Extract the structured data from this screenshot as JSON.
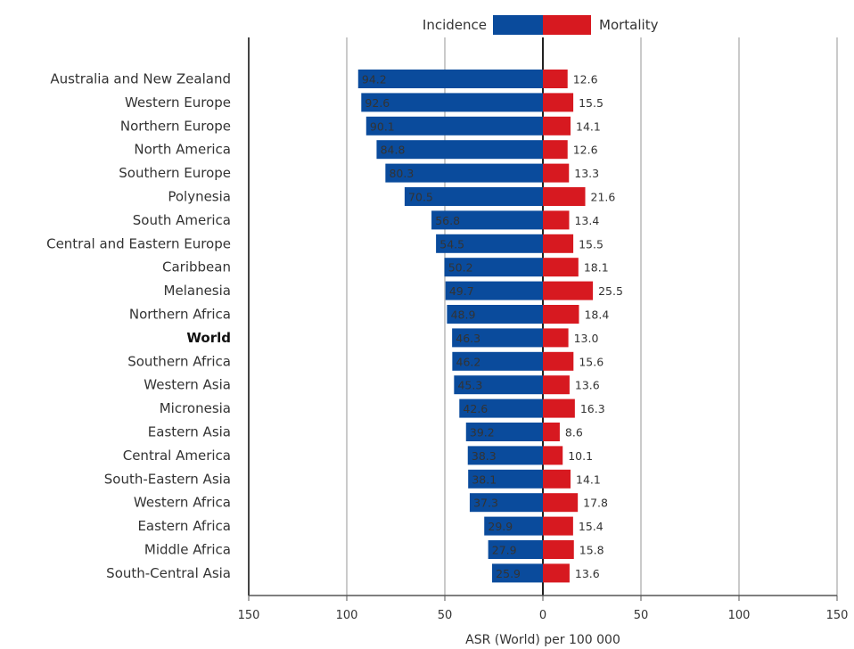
{
  "chart_data": {
    "type": "bar",
    "orientation": "horizontal-diverging",
    "xlabel": "ASR (World) per 100 000",
    "xlim": [
      -150,
      150
    ],
    "xticks": [
      150,
      100,
      50,
      0,
      50,
      100,
      150
    ],
    "grid": true,
    "legend_position": "top-center",
    "categories": [
      "Australia and New Zealand",
      "Western Europe",
      "Northern Europe",
      "North America",
      "Southern Europe",
      "Polynesia",
      "South America",
      "Central and Eastern Europe",
      "Caribbean",
      "Melanesia",
      "Northern Africa",
      "World",
      "Southern Africa",
      "Western Asia",
      "Micronesia",
      "Eastern Asia",
      "Central America",
      "South-Eastern Asia",
      "Western Africa",
      "Eastern Africa",
      "Middle Africa",
      "South-Central Asia"
    ],
    "highlight_category": "World",
    "series": [
      {
        "name": "Incidence",
        "color": "#0a4b9c",
        "side": "left",
        "values": [
          94.2,
          92.6,
          90.1,
          84.8,
          80.3,
          70.5,
          56.8,
          54.5,
          50.2,
          49.7,
          48.9,
          46.3,
          46.2,
          45.3,
          42.6,
          39.2,
          38.3,
          38.1,
          37.3,
          29.9,
          27.9,
          25.9
        ]
      },
      {
        "name": "Mortality",
        "color": "#d71920",
        "side": "right",
        "values": [
          12.6,
          15.5,
          14.1,
          12.6,
          13.3,
          21.6,
          13.4,
          15.5,
          18.1,
          25.5,
          18.4,
          13.0,
          15.6,
          13.6,
          16.3,
          8.6,
          10.1,
          14.1,
          17.8,
          15.4,
          15.8,
          13.6
        ]
      }
    ]
  }
}
